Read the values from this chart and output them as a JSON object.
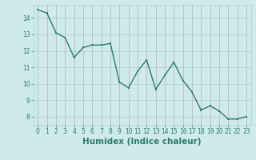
{
  "x": [
    0,
    1,
    2,
    3,
    4,
    5,
    6,
    7,
    8,
    9,
    10,
    11,
    12,
    13,
    14,
    15,
    16,
    17,
    18,
    19,
    20,
    21,
    22,
    23
  ],
  "y": [
    14.5,
    14.3,
    13.1,
    12.8,
    11.6,
    12.2,
    12.35,
    12.35,
    12.45,
    10.1,
    9.75,
    10.75,
    11.45,
    9.65,
    10.5,
    11.3,
    10.2,
    9.5,
    8.4,
    8.65,
    8.35,
    7.85,
    7.85,
    8.0
  ],
  "line_color": "#2d7a6e",
  "marker_color": "#2d7a6e",
  "bg_color": "#ceeaea",
  "grid_v_color": "#c8aaaa",
  "grid_h_color": "#aad0d0",
  "xlabel": "Humidex (Indice chaleur)",
  "xlim": [
    -0.5,
    23.5
  ],
  "ylim": [
    7.5,
    14.8
  ],
  "yticks": [
    8,
    9,
    10,
    11,
    12,
    13,
    14
  ],
  "xticks": [
    0,
    1,
    2,
    3,
    4,
    5,
    6,
    7,
    8,
    9,
    10,
    11,
    12,
    13,
    14,
    15,
    16,
    17,
    18,
    19,
    20,
    21,
    22,
    23
  ],
  "tick_fontsize": 5.5,
  "xlabel_fontsize": 7.5,
  "line_width": 1.0,
  "marker_size": 2.0
}
